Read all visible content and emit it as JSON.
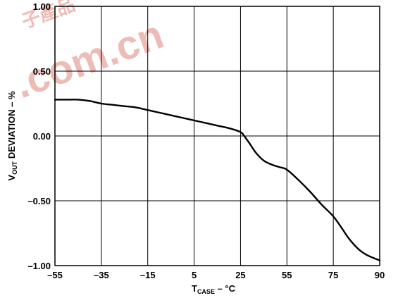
{
  "chart_data": {
    "type": "line",
    "xlabel_main": "T",
    "xlabel_sub": "CASE",
    "xlabel_suffix": " – °C",
    "ylabel_main": "V",
    "ylabel_sub": "OUT",
    "ylabel_suffix": " DEVIATION – %",
    "xlim": [
      -55,
      90
    ],
    "ylim": [
      -1.0,
      1.0
    ],
    "x_ticks": [
      -55,
      -35,
      -15,
      5,
      25,
      55,
      75,
      90
    ],
    "x_tick_labels": [
      "–55",
      "–35",
      "–15",
      "5",
      "25",
      "55",
      "75",
      "90"
    ],
    "y_ticks": [
      1.0,
      0.5,
      0.0,
      -0.5,
      -1.0
    ],
    "y_tick_labels": [
      "1.00",
      "0.50",
      "0.00",
      "–0.50",
      "–1.00"
    ],
    "grid": true,
    "series": [
      {
        "x": [
          -55,
          -50,
          -45,
          -40,
          -35,
          -30,
          -25,
          -20,
          -15,
          -10,
          -5,
          0,
          5,
          10,
          15,
          20,
          25,
          28,
          31,
          35,
          40,
          45,
          50,
          55,
          60,
          65,
          70,
          75,
          78,
          80,
          83,
          86,
          90
        ],
        "y": [
          0.28,
          0.28,
          0.28,
          0.27,
          0.25,
          0.24,
          0.23,
          0.22,
          0.2,
          0.18,
          0.16,
          0.14,
          0.12,
          0.1,
          0.08,
          0.06,
          0.03,
          -0.01,
          -0.06,
          -0.13,
          -0.19,
          -0.22,
          -0.24,
          -0.26,
          -0.34,
          -0.43,
          -0.53,
          -0.62,
          -0.72,
          -0.79,
          -0.87,
          -0.92,
          -0.96
        ]
      }
    ]
  },
  "watermark": {
    "text": ".com.cn",
    "cjk": "子產品"
  }
}
